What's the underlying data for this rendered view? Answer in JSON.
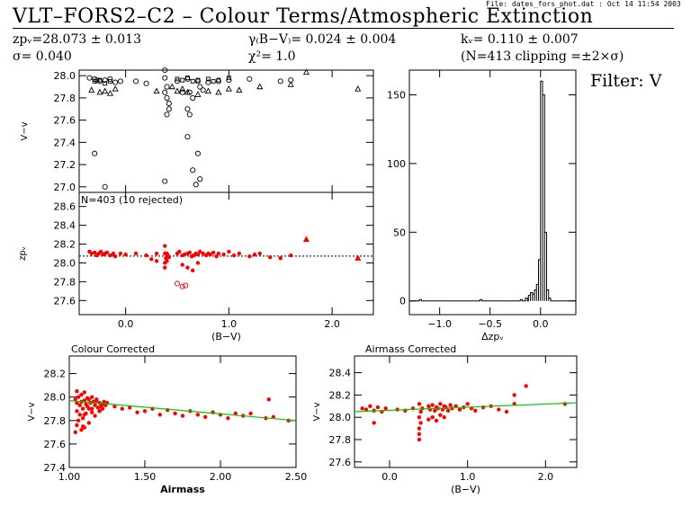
{
  "header": {
    "file_note": "File: dates_fors_phot.dat : Oct 14 11:54 2003",
    "title": "VLT–FORS2–C2  –  Colour Terms/Atmospheric Extinction",
    "zp": "zpᵥ=28.073 ± 0.013",
    "sigma": "σ=  0.040",
    "colour_term": "γ₍B−V₎=  0.024 ± 0.004",
    "chi2": "χ²=   1.0",
    "extinction": "kᵥ=  0.110 ± 0.007",
    "clipping": "(N=413  clipping =±2×σ)",
    "filter": "Filter: V"
  },
  "chart_data": [
    {
      "id": "raw_mag_vs_colour",
      "type": "scatter",
      "ylabel": "V−v",
      "xlim": [
        -0.45,
        2.4
      ],
      "ylim": [
        26.95,
        28.05
      ],
      "yticks": [
        "28.0",
        "27.8",
        "27.6",
        "27.4",
        "27.2",
        "27.0"
      ],
      "color": "#000000",
      "series": [
        {
          "marker": "circle",
          "x": [
            -0.35,
            -0.3,
            -0.28,
            -0.25,
            -0.2,
            -0.15,
            -0.1,
            -0.05,
            0.1,
            0.2,
            0.38,
            0.38,
            0.38,
            0.4,
            0.4,
            0.42,
            0.5,
            0.55,
            0.6,
            0.62,
            0.65,
            0.7,
            0.72,
            0.75,
            0.8,
            0.9,
            1.0,
            1.2,
            1.5,
            1.6,
            -0.3,
            -0.2,
            0.38,
            0.4,
            0.42,
            0.6,
            0.65,
            0.7,
            0.72,
            0.62,
            0.6,
            0.68
          ],
          "y": [
            27.98,
            27.97,
            27.96,
            27.95,
            27.96,
            27.97,
            27.94,
            27.95,
            27.95,
            27.93,
            28.05,
            27.98,
            27.85,
            27.9,
            27.8,
            27.75,
            27.95,
            27.85,
            27.97,
            27.85,
            27.8,
            27.95,
            27.9,
            27.87,
            27.94,
            27.95,
            27.96,
            27.97,
            27.95,
            27.96,
            27.3,
            27.0,
            27.05,
            27.65,
            27.7,
            27.45,
            27.15,
            27.3,
            27.07,
            27.65,
            27.7,
            27.02
          ]
        },
        {
          "marker": "triangle",
          "x": [
            -0.33,
            -0.25,
            -0.2,
            -0.15,
            -0.1,
            0.3,
            0.45,
            0.55,
            0.6,
            0.7,
            0.8,
            0.9,
            1.0,
            1.1,
            1.3,
            1.6,
            1.75,
            2.25,
            0.5
          ],
          "y": [
            27.87,
            27.85,
            27.86,
            27.84,
            27.88,
            27.86,
            27.9,
            27.88,
            27.85,
            27.83,
            27.86,
            27.85,
            27.88,
            27.87,
            27.9,
            27.92,
            28.03,
            27.88,
            27.86
          ]
        },
        {
          "marker": "square",
          "x": [
            -0.3,
            -0.25,
            -0.2,
            -0.15,
            0.5,
            0.55,
            0.6,
            0.65,
            0.7,
            0.8,
            0.85,
            0.9,
            1.0
          ],
          "y": [
            27.95,
            27.96,
            27.93,
            27.95,
            27.97,
            27.96,
            27.98,
            27.95,
            27.96,
            27.97,
            27.95,
            27.96,
            27.98
          ]
        }
      ]
    },
    {
      "id": "zp_vs_colour",
      "type": "scatter",
      "ylabel": "zpᵥ",
      "annotation": "N=403 (10 rejected)",
      "xlim": [
        -0.45,
        2.4
      ],
      "ylim": [
        27.45,
        28.75
      ],
      "xticks": [
        "0.0",
        "1.0",
        "2.0"
      ],
      "xlabel": "(B−V)",
      "yticks": [
        "28.6",
        "28.4",
        "28.2",
        "28.0",
        "27.8",
        "27.6"
      ],
      "reference_line": 28.073,
      "color": "#ff0000",
      "series": [
        {
          "marker": "filled-circle",
          "x": [
            -0.35,
            -0.33,
            -0.3,
            -0.28,
            -0.26,
            -0.24,
            -0.22,
            -0.2,
            -0.18,
            -0.15,
            -0.12,
            -0.1,
            -0.05,
            0.0,
            0.1,
            0.2,
            0.3,
            0.38,
            0.38,
            0.38,
            0.38,
            0.39,
            0.4,
            0.4,
            0.41,
            0.42,
            0.5,
            0.52,
            0.55,
            0.57,
            0.6,
            0.62,
            0.64,
            0.66,
            0.68,
            0.7,
            0.72,
            0.75,
            0.78,
            0.8,
            0.82,
            0.85,
            0.88,
            0.9,
            0.95,
            1.0,
            1.05,
            1.1,
            1.2,
            1.25,
            1.3,
            1.4,
            1.5,
            1.6,
            0.55,
            0.6,
            0.65,
            0.7,
            0.3,
            0.25
          ],
          "y": [
            28.12,
            28.1,
            28.11,
            28.08,
            28.1,
            28.12,
            28.09,
            28.1,
            28.11,
            28.08,
            28.1,
            28.07,
            28.1,
            28.09,
            28.1,
            28.08,
            28.1,
            28.18,
            28.1,
            28.0,
            27.95,
            28.05,
            28.1,
            28.02,
            28.08,
            28.06,
            28.1,
            28.12,
            28.08,
            28.09,
            28.1,
            28.11,
            28.07,
            28.08,
            28.1,
            28.09,
            28.12,
            28.1,
            28.08,
            28.1,
            28.09,
            28.11,
            28.07,
            28.1,
            28.09,
            28.12,
            28.08,
            28.1,
            28.07,
            28.09,
            28.1,
            28.06,
            28.05,
            28.08,
            27.98,
            27.95,
            27.92,
            28.0,
            28.02,
            28.04
          ]
        },
        {
          "marker": "open-circle",
          "x": [
            0.5,
            0.55,
            0.58
          ],
          "y": [
            27.78,
            27.75,
            27.76
          ]
        },
        {
          "marker": "filled-triangle",
          "x": [
            1.75,
            2.25
          ],
          "y": [
            28.25,
            28.05
          ]
        }
      ]
    },
    {
      "id": "histogram",
      "type": "bar",
      "xlabel": "Δzpᵥ",
      "xlim": [
        -1.3,
        0.35
      ],
      "ylim": [
        -10,
        168
      ],
      "xticks": [
        "−1.0",
        "−0.5",
        "0.0"
      ],
      "yticks": [
        "150",
        "100",
        "50",
        "0"
      ],
      "bin_width": 0.02,
      "bin_starts": [
        -1.2,
        -0.6,
        -0.2,
        -0.15,
        -0.12,
        -0.1,
        -0.08,
        -0.06,
        -0.04,
        -0.02,
        0.0,
        0.02,
        0.04,
        0.06,
        0.08
      ],
      "counts": [
        1,
        1,
        1,
        2,
        4,
        6,
        5,
        8,
        12,
        30,
        160,
        150,
        50,
        8,
        2
      ]
    },
    {
      "id": "colour_corrected",
      "type": "scatter",
      "title": "Colour Corrected",
      "xlabel": "Airmass",
      "ylabel": "V−v",
      "xlim": [
        1.0,
        2.5
      ],
      "ylim": [
        27.4,
        28.35
      ],
      "xticks": [
        "1.00",
        "1.50",
        "2.00",
        "2.50"
      ],
      "yticks": [
        "28.2",
        "28.0",
        "27.8",
        "27.6",
        "27.4"
      ],
      "fit_line": {
        "x": [
          1.0,
          2.5
        ],
        "y": [
          27.97,
          27.8
        ]
      },
      "color": "#ff0000",
      "series": [
        {
          "marker": "filled-circle",
          "x": [
            1.04,
            1.05,
            1.06,
            1.07,
            1.08,
            1.09,
            1.1,
            1.11,
            1.12,
            1.13,
            1.14,
            1.15,
            1.16,
            1.17,
            1.18,
            1.19,
            1.2,
            1.21,
            1.22,
            1.23,
            1.24,
            1.25,
            1.05,
            1.07,
            1.09,
            1.11,
            1.13,
            1.15,
            1.17,
            1.2,
            1.22,
            1.05,
            1.08,
            1.1,
            1.12,
            1.15,
            1.18,
            1.06,
            1.09,
            1.13,
            1.04,
            1.08,
            1.2,
            1.1,
            1.3,
            1.35,
            1.4,
            1.45,
            1.5,
            1.55,
            1.6,
            1.65,
            1.7,
            1.75,
            1.8,
            1.85,
            1.9,
            1.95,
            2.0,
            2.05,
            2.1,
            2.15,
            2.2,
            2.3,
            2.35,
            2.45,
            1.05,
            1.1,
            2.32
          ],
          "y": [
            27.98,
            27.95,
            28.0,
            27.93,
            27.96,
            27.9,
            27.97,
            27.94,
            27.92,
            27.98,
            27.95,
            27.9,
            27.96,
            27.93,
            27.97,
            27.91,
            27.95,
            27.92,
            27.94,
            27.96,
            27.93,
            27.95,
            27.88,
            27.85,
            27.82,
            27.86,
            27.9,
            27.87,
            27.84,
            27.88,
            27.9,
            28.05,
            28.02,
            28.04,
            27.99,
            28.0,
            27.98,
            27.8,
            27.75,
            27.78,
            27.7,
            27.72,
            27.88,
            27.85,
            27.92,
            27.9,
            27.91,
            27.87,
            27.88,
            27.9,
            27.85,
            27.89,
            27.86,
            27.84,
            27.88,
            27.85,
            27.83,
            27.87,
            27.85,
            27.82,
            27.86,
            27.84,
            27.86,
            27.82,
            27.83,
            27.8,
            27.76,
            27.74,
            27.98
          ]
        }
      ]
    },
    {
      "id": "airmass_corrected",
      "type": "scatter",
      "title": "Airmass Corrected",
      "xlabel": "(B−V)",
      "ylabel": "V−v",
      "xlim": [
        -0.45,
        2.4
      ],
      "ylim": [
        27.55,
        28.55
      ],
      "xticks": [
        "0.0",
        "1.0",
        "2.0"
      ],
      "yticks": [
        "28.4",
        "28.2",
        "28.0",
        "27.8",
        "27.6"
      ],
      "fit_line": {
        "x": [
          -0.45,
          2.4
        ],
        "y": [
          28.05,
          28.13
        ]
      },
      "color": "#ff0000",
      "series": [
        {
          "marker": "filled-circle",
          "x": [
            -0.35,
            -0.3,
            -0.25,
            -0.2,
            -0.15,
            -0.1,
            -0.05,
            0.1,
            0.2,
            0.3,
            0.38,
            0.38,
            0.38,
            0.38,
            0.4,
            0.4,
            0.42,
            0.5,
            0.52,
            0.55,
            0.58,
            0.6,
            0.62,
            0.65,
            0.68,
            0.7,
            0.72,
            0.75,
            0.78,
            0.8,
            0.85,
            0.9,
            0.95,
            1.0,
            1.05,
            1.1,
            1.2,
            1.3,
            1.4,
            1.5,
            1.6,
            1.75,
            2.25,
            0.5,
            0.55,
            0.6,
            0.65,
            0.7,
            0.38,
            -0.2,
            1.6
          ],
          "y": [
            28.08,
            28.07,
            28.1,
            28.06,
            28.09,
            28.05,
            28.08,
            28.07,
            28.06,
            28.08,
            28.12,
            28.0,
            27.9,
            27.85,
            28.05,
            27.95,
            28.08,
            28.1,
            28.07,
            28.11,
            28.06,
            28.09,
            28.08,
            28.12,
            28.07,
            28.1,
            28.09,
            28.06,
            28.11,
            28.08,
            28.1,
            28.07,
            28.09,
            28.12,
            28.08,
            28.06,
            28.09,
            28.1,
            28.07,
            28.05,
            28.2,
            28.28,
            28.12,
            27.98,
            28.0,
            27.97,
            28.02,
            28.0,
            27.8,
            27.95,
            28.12
          ]
        }
      ]
    }
  ]
}
